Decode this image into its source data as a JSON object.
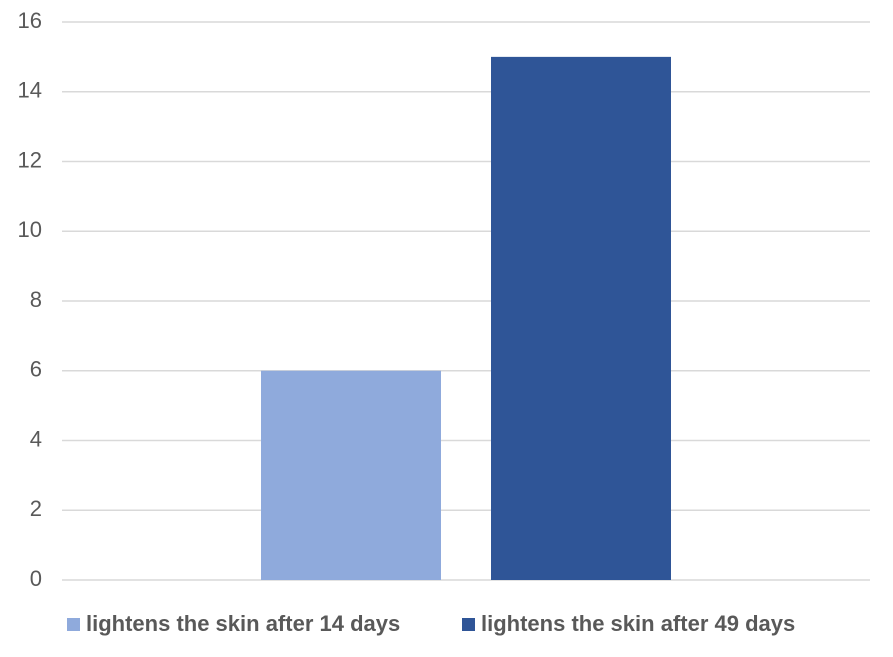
{
  "chart_data": {
    "type": "bar",
    "categories": [
      null
    ],
    "series": [
      {
        "name": "lightens the skin after 14 days",
        "color": "#8faadc",
        "values": [
          6
        ]
      },
      {
        "name": "lightens the skin after 49 days",
        "color": "#2f5597",
        "values": [
          15
        ]
      }
    ],
    "ylim": [
      0,
      16
    ],
    "yticks": [
      0,
      2,
      4,
      6,
      8,
      10,
      12,
      14,
      16
    ],
    "grid": true,
    "legend": "bottom"
  }
}
